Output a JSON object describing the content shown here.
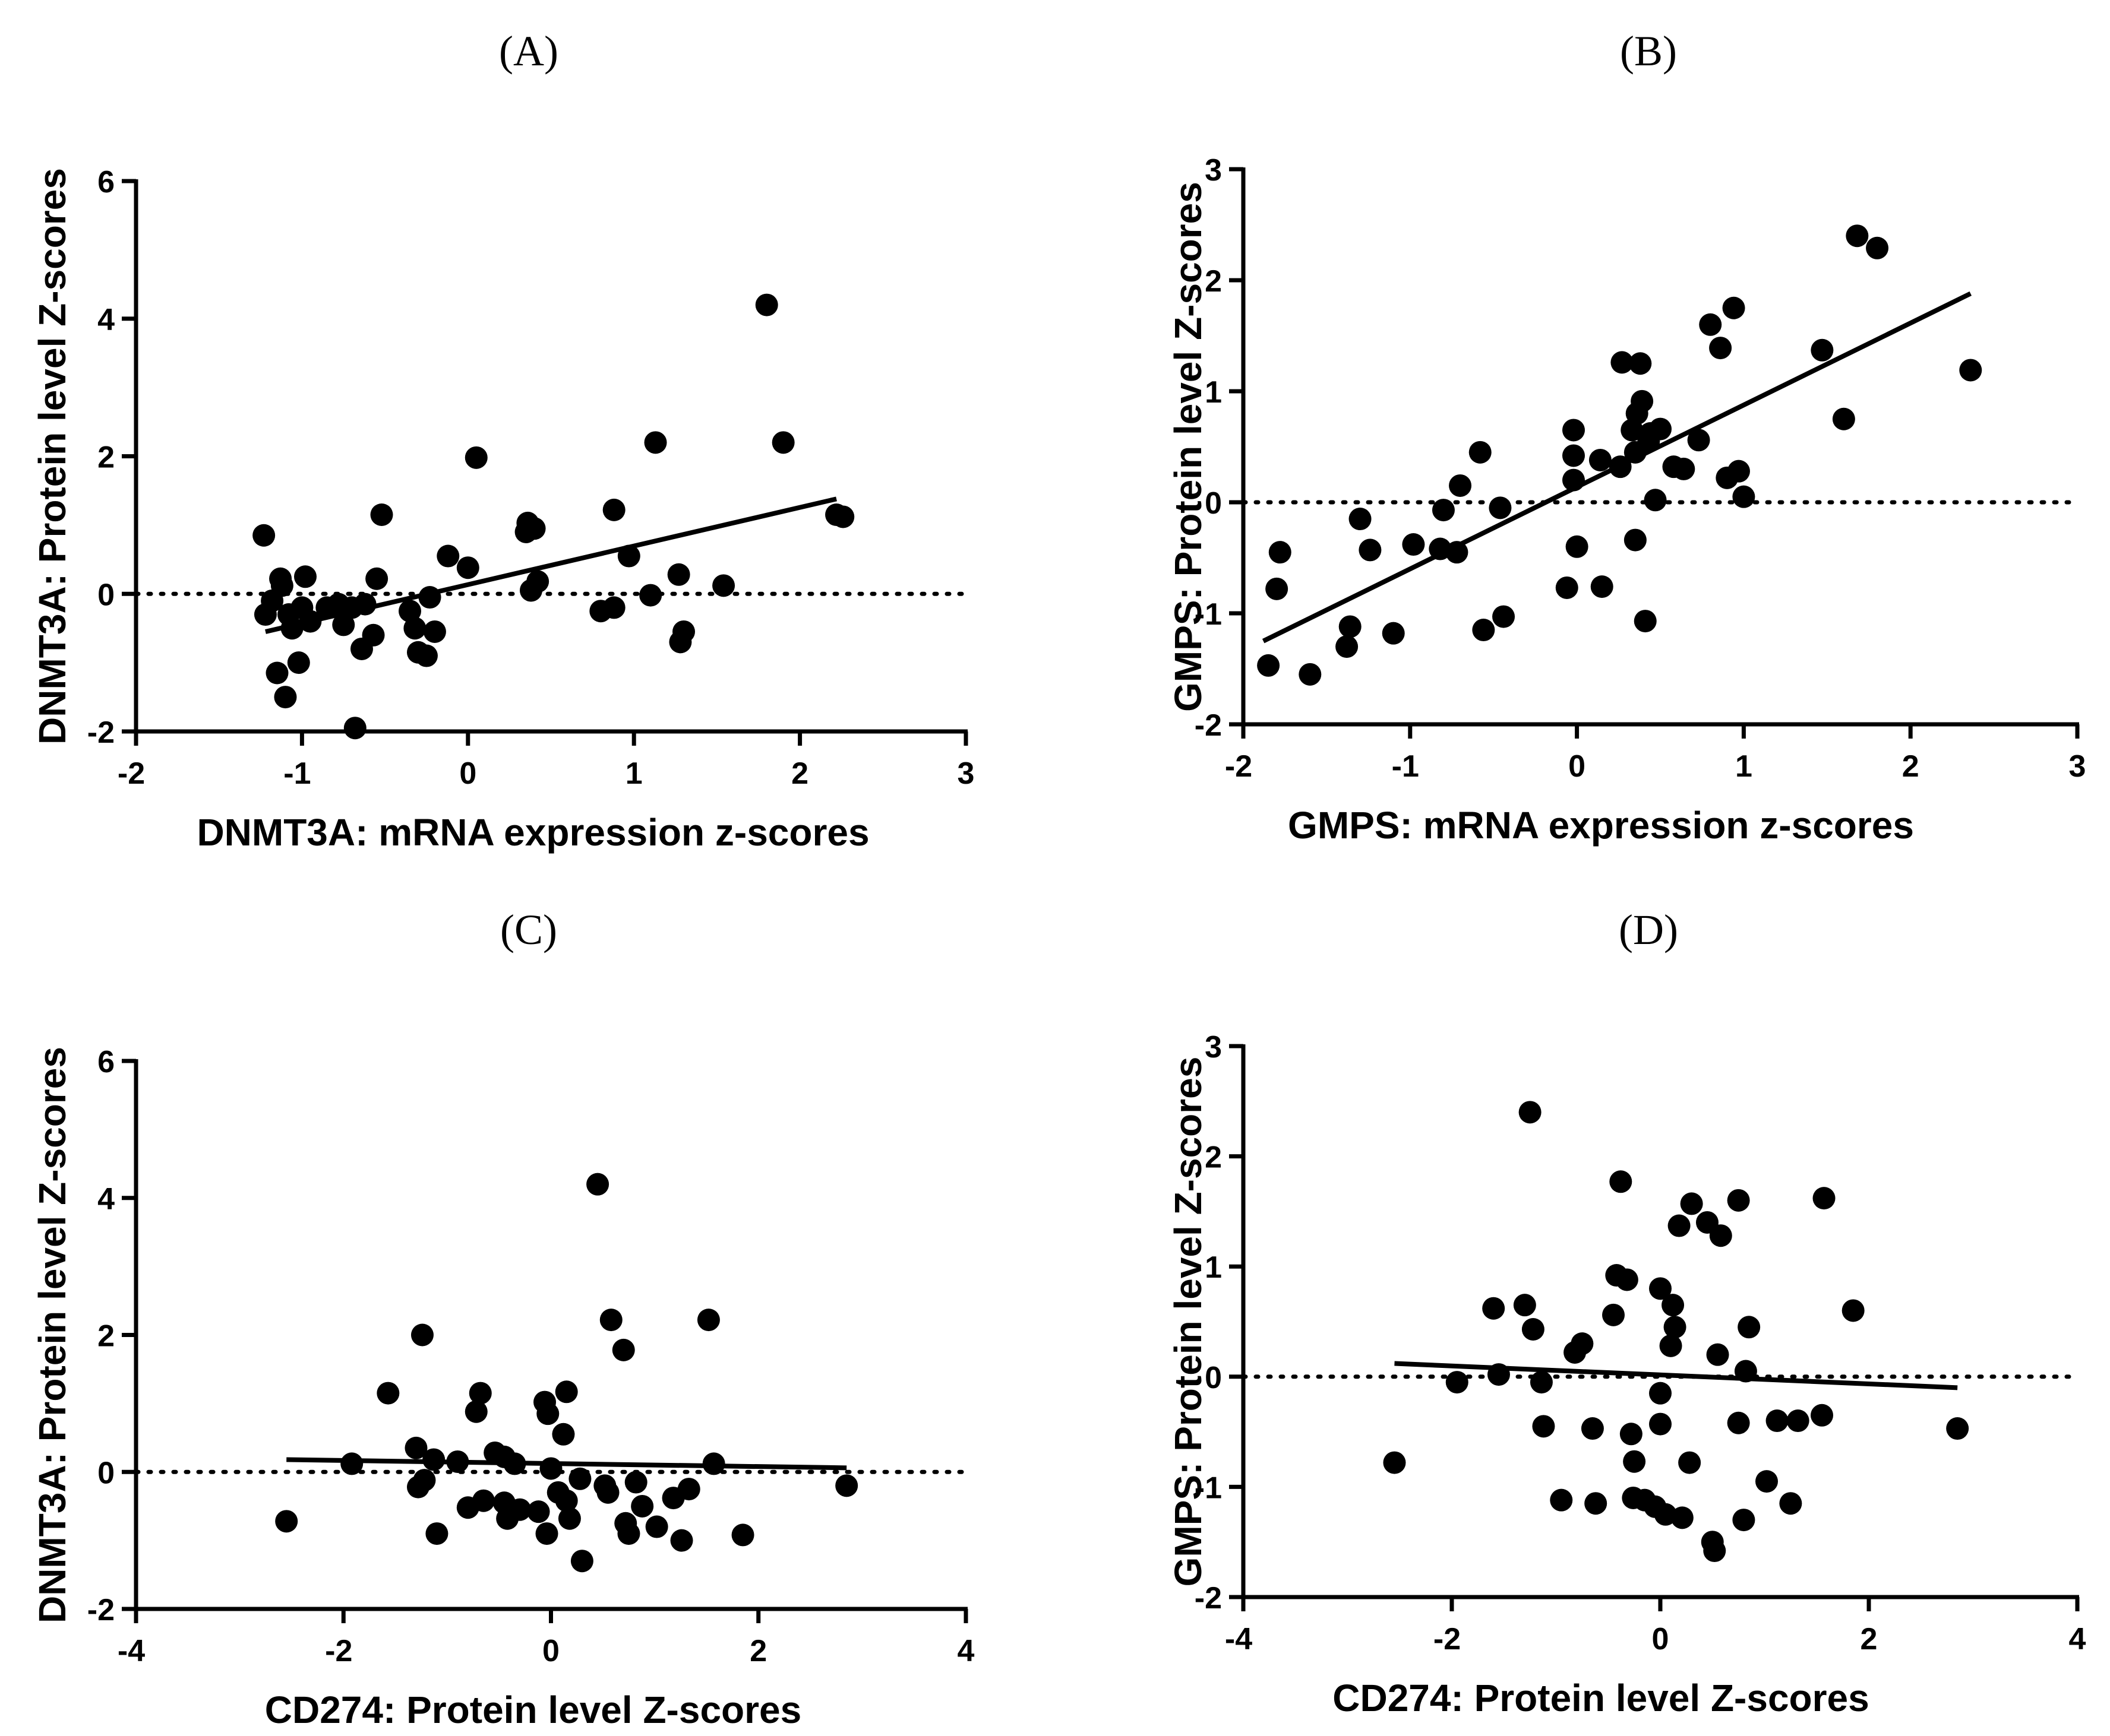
{
  "chart_data": [
    {
      "id": "A",
      "type": "scatter",
      "title": "(A)",
      "xlabel": "DNMT3A: mRNA expression z-scores",
      "ylabel": "DNMT3A: Protein level Z-scores",
      "xlim": [
        -2,
        3
      ],
      "ylim": [
        -2,
        6
      ],
      "xticks": [
        -2,
        -1,
        0,
        1,
        2,
        3
      ],
      "yticks": [
        -2,
        0,
        2,
        4,
        6
      ],
      "reference_line_y": 0,
      "fit_line": {
        "x": [
          -1.22,
          2.22
        ],
        "y": [
          -0.55,
          1.38
        ]
      },
      "points": [
        [
          -1.23,
          0.85
        ],
        [
          -1.22,
          -0.3
        ],
        [
          -1.18,
          -0.1
        ],
        [
          -1.15,
          -1.15
        ],
        [
          -1.13,
          0.22
        ],
        [
          -1.12,
          0.12
        ],
        [
          -1.1,
          -1.5
        ],
        [
          -1.08,
          -0.3
        ],
        [
          -1.06,
          -0.5
        ],
        [
          -1.02,
          -1.0
        ],
        [
          -1.0,
          -0.2
        ],
        [
          -0.98,
          0.25
        ],
        [
          -0.95,
          -0.4
        ],
        [
          -0.85,
          -0.2
        ],
        [
          -0.78,
          -0.15
        ],
        [
          -0.75,
          -0.45
        ],
        [
          -0.7,
          -0.2
        ],
        [
          -0.68,
          -1.95
        ],
        [
          -0.64,
          -0.8
        ],
        [
          -0.62,
          -0.15
        ],
        [
          -0.57,
          -0.6
        ],
        [
          -0.55,
          0.22
        ],
        [
          -0.52,
          1.15
        ],
        [
          -0.35,
          -0.25
        ],
        [
          -0.32,
          -0.5
        ],
        [
          -0.3,
          -0.85
        ],
        [
          -0.25,
          -0.9
        ],
        [
          -0.23,
          -0.05
        ],
        [
          -0.2,
          -0.55
        ],
        [
          -0.12,
          0.55
        ],
        [
          0.0,
          0.38
        ],
        [
          0.05,
          1.98
        ],
        [
          0.35,
          0.9
        ],
        [
          0.36,
          1.03
        ],
        [
          0.38,
          0.05
        ],
        [
          0.4,
          0.95
        ],
        [
          0.42,
          0.18
        ],
        [
          0.8,
          -0.25
        ],
        [
          0.88,
          -0.2
        ],
        [
          0.88,
          1.22
        ],
        [
          0.97,
          0.55
        ],
        [
          1.1,
          -0.02
        ],
        [
          1.13,
          2.2
        ],
        [
          1.27,
          0.28
        ],
        [
          1.28,
          -0.7
        ],
        [
          1.3,
          -0.55
        ],
        [
          1.54,
          0.12
        ],
        [
          1.8,
          4.2
        ],
        [
          1.9,
          2.2
        ],
        [
          2.22,
          1.15
        ],
        [
          2.26,
          1.12
        ]
      ]
    },
    {
      "id": "B",
      "type": "scatter",
      "title": "(B)",
      "xlabel": "GMPS: mRNA expression z-scores",
      "ylabel": "GMPS: Protein level Z-scores",
      "xlim": [
        -2,
        3
      ],
      "ylim": [
        -2,
        3
      ],
      "xticks": [
        -2,
        -1,
        0,
        1,
        2,
        3
      ],
      "yticks": [
        -2,
        -1,
        0,
        1,
        2,
        3
      ],
      "reference_line_y": 0,
      "fit_line": {
        "x": [
          -1.88,
          2.36
        ],
        "y": [
          -1.25,
          1.88
        ]
      },
      "points": [
        [
          -1.85,
          -1.47
        ],
        [
          -1.8,
          -0.78
        ],
        [
          -1.78,
          -0.45
        ],
        [
          -1.6,
          -1.55
        ],
        [
          -1.38,
          -1.3
        ],
        [
          -1.36,
          -1.12
        ],
        [
          -1.3,
          -0.15
        ],
        [
          -1.24,
          -0.43
        ],
        [
          -1.1,
          -1.18
        ],
        [
          -0.98,
          -0.38
        ],
        [
          -0.82,
          -0.42
        ],
        [
          -0.8,
          -0.07
        ],
        [
          -0.72,
          -0.45
        ],
        [
          -0.7,
          0.15
        ],
        [
          -0.58,
          0.45
        ],
        [
          -0.56,
          -1.15
        ],
        [
          -0.46,
          -0.05
        ],
        [
          -0.44,
          -1.03
        ],
        [
          -0.06,
          -0.77
        ],
        [
          -0.02,
          0.65
        ],
        [
          -0.02,
          0.42
        ],
        [
          -0.02,
          0.2
        ],
        [
          0.0,
          -0.4
        ],
        [
          0.14,
          0.38
        ],
        [
          0.15,
          -0.76
        ],
        [
          0.26,
          0.32
        ],
        [
          0.27,
          1.26
        ],
        [
          0.33,
          0.65
        ],
        [
          0.35,
          -0.34
        ],
        [
          0.35,
          0.45
        ],
        [
          0.36,
          0.8
        ],
        [
          0.38,
          1.25
        ],
        [
          0.39,
          0.91
        ],
        [
          0.41,
          -1.07
        ],
        [
          0.43,
          0.55
        ],
        [
          0.44,
          0.62
        ],
        [
          0.47,
          0.02
        ],
        [
          0.5,
          0.66
        ],
        [
          0.58,
          0.32
        ],
        [
          0.64,
          0.3
        ],
        [
          0.73,
          0.56
        ],
        [
          0.8,
          1.6
        ],
        [
          0.86,
          1.39
        ],
        [
          0.9,
          0.22
        ],
        [
          0.94,
          1.75
        ],
        [
          0.97,
          0.28
        ],
        [
          1.0,
          0.05
        ],
        [
          1.47,
          1.37
        ],
        [
          1.6,
          0.75
        ],
        [
          1.68,
          2.4
        ],
        [
          1.8,
          2.29
        ],
        [
          2.36,
          1.19
        ]
      ]
    },
    {
      "id": "C",
      "type": "scatter",
      "title": "(C)",
      "xlabel": "CD274: Protein level Z-scores",
      "ylabel": "DNMT3A: Protein level Z-scores",
      "xlim": [
        -4,
        4
      ],
      "ylim": [
        -2,
        6
      ],
      "xticks": [
        -4,
        -2,
        0,
        2,
        4
      ],
      "yticks": [
        -2,
        0,
        2,
        4,
        6
      ],
      "reference_line_y": 0,
      "fit_line": {
        "x": [
          -2.55,
          2.85
        ],
        "y": [
          0.18,
          0.06
        ]
      },
      "points": [
        [
          -2.55,
          -0.72
        ],
        [
          -1.92,
          0.12
        ],
        [
          -1.57,
          1.15
        ],
        [
          -1.3,
          0.35
        ],
        [
          -1.28,
          -0.22
        ],
        [
          -1.24,
          2.0
        ],
        [
          -1.22,
          -0.12
        ],
        [
          -1.13,
          0.18
        ],
        [
          -1.1,
          -0.9
        ],
        [
          -0.9,
          0.15
        ],
        [
          -0.8,
          -0.52
        ],
        [
          -0.72,
          0.88
        ],
        [
          -0.68,
          1.15
        ],
        [
          -0.65,
          -0.42
        ],
        [
          -0.54,
          0.28
        ],
        [
          -0.45,
          -0.45
        ],
        [
          -0.45,
          0.22
        ],
        [
          -0.42,
          -0.68
        ],
        [
          -0.35,
          0.12
        ],
        [
          -0.3,
          -0.55
        ],
        [
          -0.12,
          -0.58
        ],
        [
          -0.06,
          1.02
        ],
        [
          -0.04,
          -0.9
        ],
        [
          -0.03,
          0.85
        ],
        [
          0.0,
          0.05
        ],
        [
          0.07,
          -0.3
        ],
        [
          0.12,
          0.55
        ],
        [
          0.15,
          -0.42
        ],
        [
          0.15,
          1.17
        ],
        [
          0.18,
          -0.68
        ],
        [
          0.28,
          -0.1
        ],
        [
          0.3,
          -1.3
        ],
        [
          0.45,
          4.2
        ],
        [
          0.52,
          -0.2
        ],
        [
          0.55,
          -0.3
        ],
        [
          0.58,
          2.22
        ],
        [
          0.7,
          1.78
        ],
        [
          0.72,
          -0.75
        ],
        [
          0.75,
          -0.9
        ],
        [
          0.82,
          -0.15
        ],
        [
          0.88,
          -0.5
        ],
        [
          1.02,
          -0.8
        ],
        [
          1.18,
          -0.38
        ],
        [
          1.26,
          -1.0
        ],
        [
          1.33,
          -0.25
        ],
        [
          1.52,
          2.22
        ],
        [
          1.57,
          0.12
        ],
        [
          1.85,
          -0.92
        ],
        [
          2.85,
          -0.2
        ]
      ]
    },
    {
      "id": "D",
      "type": "scatter",
      "title": "(D)",
      "xlabel": "CD274: Protein level Z-scores",
      "ylabel": "GMPS: Protein level Z-scores",
      "xlim": [
        -4,
        4
      ],
      "ylim": [
        -2,
        3
      ],
      "xticks": [
        -4,
        -2,
        0,
        2,
        4
      ],
      "yticks": [
        -2,
        -1,
        0,
        1,
        2,
        3
      ],
      "reference_line_y": 0,
      "fit_line": {
        "x": [
          -2.55,
          2.85
        ],
        "y": [
          0.12,
          -0.1
        ]
      },
      "points": [
        [
          -2.55,
          -0.78
        ],
        [
          -1.95,
          -0.05
        ],
        [
          -1.6,
          0.62
        ],
        [
          -1.55,
          0.02
        ],
        [
          -1.3,
          0.65
        ],
        [
          -1.25,
          2.4
        ],
        [
          -1.22,
          0.43
        ],
        [
          -1.14,
          -0.05
        ],
        [
          -1.12,
          -0.45
        ],
        [
          -0.95,
          -1.12
        ],
        [
          -0.82,
          0.22
        ],
        [
          -0.75,
          0.3
        ],
        [
          -0.65,
          -0.47
        ],
        [
          -0.62,
          -1.15
        ],
        [
          -0.45,
          0.56
        ],
        [
          -0.42,
          0.92
        ],
        [
          -0.38,
          1.77
        ],
        [
          -0.32,
          0.88
        ],
        [
          -0.28,
          -0.52
        ],
        [
          -0.26,
          -1.1
        ],
        [
          -0.25,
          -0.77
        ],
        [
          -0.15,
          -1.12
        ],
        [
          -0.05,
          -1.18
        ],
        [
          0.0,
          -0.15
        ],
        [
          0.0,
          0.8
        ],
        [
          0.0,
          -0.43
        ],
        [
          0.05,
          -1.25
        ],
        [
          0.1,
          0.28
        ],
        [
          0.12,
          0.65
        ],
        [
          0.14,
          0.45
        ],
        [
          0.18,
          1.37
        ],
        [
          0.21,
          -1.28
        ],
        [
          0.28,
          -0.78
        ],
        [
          0.3,
          1.57
        ],
        [
          0.45,
          1.4
        ],
        [
          0.5,
          -1.5
        ],
        [
          0.52,
          -1.58
        ],
        [
          0.55,
          0.2
        ],
        [
          0.58,
          1.28
        ],
        [
          0.75,
          1.6
        ],
        [
          0.75,
          -0.42
        ],
        [
          0.8,
          -1.3
        ],
        [
          0.82,
          0.05
        ],
        [
          0.85,
          0.45
        ],
        [
          1.02,
          -0.95
        ],
        [
          1.12,
          -0.4
        ],
        [
          1.25,
          -1.15
        ],
        [
          1.32,
          -0.4
        ],
        [
          1.55,
          -0.35
        ],
        [
          1.57,
          1.62
        ],
        [
          1.85,
          0.6
        ],
        [
          2.85,
          -0.47
        ]
      ]
    }
  ]
}
